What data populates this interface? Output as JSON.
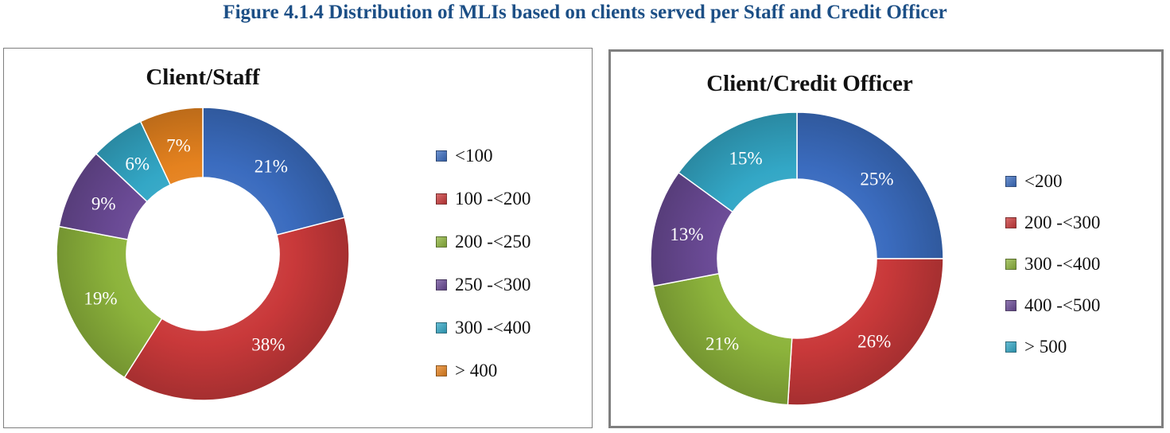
{
  "figure_title": "Figure 4.1.4 Distribution of MLIs based on clients served per Staff and Credit Officer",
  "chart_data": [
    {
      "type": "pie",
      "variant": "donut",
      "title": "Client/Staff",
      "categories": [
        "<100",
        "100 -<200",
        "200 -<250",
        "250 -<300",
        "300 -<400",
        "> 400"
      ],
      "values": [
        21,
        38,
        19,
        9,
        6,
        7
      ],
      "labels": [
        "21%",
        "38%",
        "19%",
        "9%",
        "6%",
        "7%"
      ],
      "colors": [
        "#3b6cbf",
        "#c9393a",
        "#8db43c",
        "#6a4a95",
        "#33a7c6",
        "#e5821f"
      ],
      "legend_position": "right"
    },
    {
      "type": "pie",
      "variant": "donut",
      "title": "Client/Credit Officer",
      "categories": [
        "<200",
        "200 -<300",
        "300 -<400",
        "400 -<500",
        "> 500"
      ],
      "values": [
        25,
        26,
        21,
        13,
        15
      ],
      "labels": [
        "25%",
        "26%",
        "21%",
        "13%",
        "15%"
      ],
      "colors": [
        "#3b6cbf",
        "#c9393a",
        "#8db43c",
        "#6a4a95",
        "#33a7c6"
      ],
      "legend_position": "right"
    }
  ]
}
